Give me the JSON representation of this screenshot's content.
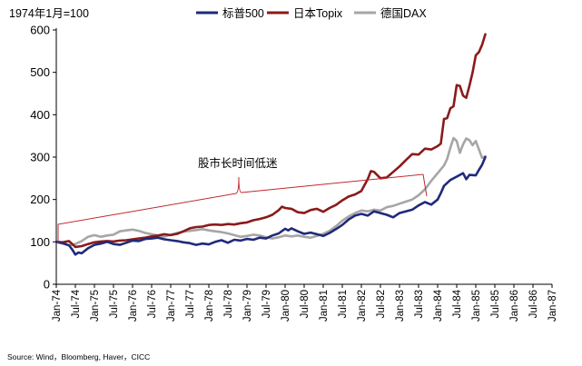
{
  "chart_data": {
    "type": "line",
    "unit_label": "1974年1月=100",
    "ylim": [
      0,
      600
    ],
    "yticks": [
      0,
      100,
      200,
      300,
      400,
      500,
      600
    ],
    "xlabels": [
      "Jan-74",
      "Jul-74",
      "Jan-75",
      "Jul-75",
      "Jan-76",
      "Jul-76",
      "Jan-77",
      "Jul-77",
      "Jan-78",
      "Jul-78",
      "Jan-79",
      "Jul-79",
      "Jan-80",
      "Jul-80",
      "Jan-81",
      "Jul-81",
      "Jan-82",
      "Jul-82",
      "Jan-83",
      "Jul-83",
      "Jan-84",
      "Jul-84",
      "Jan-85",
      "Jul-85",
      "Jan-86",
      "Jul-86",
      "Jan-87"
    ],
    "annotation": "股市长时间低迷",
    "source": "Source: Wind，Bloomberg, Haver，CICC",
    "colors": {
      "sp500": "#1f2a7a",
      "topix": "#8b1a1a",
      "dax": "#a6a6a6",
      "annotation": "#c0282d",
      "axis": "#000000"
    },
    "series": [
      {
        "key": "sp500",
        "name": "标普500",
        "points": [
          [
            0,
            100
          ],
          [
            2,
            97
          ],
          [
            4,
            92
          ],
          [
            5,
            82
          ],
          [
            6,
            70
          ],
          [
            7,
            75
          ],
          [
            8,
            73
          ],
          [
            10,
            85
          ],
          [
            12,
            93
          ],
          [
            14,
            96
          ],
          [
            16,
            100
          ],
          [
            18,
            95
          ],
          [
            20,
            93
          ],
          [
            22,
            98
          ],
          [
            24,
            103
          ],
          [
            26,
            102
          ],
          [
            28,
            107
          ],
          [
            30,
            108
          ],
          [
            32,
            110
          ],
          [
            34,
            106
          ],
          [
            36,
            104
          ],
          [
            38,
            102
          ],
          [
            40,
            99
          ],
          [
            42,
            97
          ],
          [
            44,
            93
          ],
          [
            46,
            96
          ],
          [
            48,
            94
          ],
          [
            50,
            100
          ],
          [
            52,
            104
          ],
          [
            54,
            98
          ],
          [
            56,
            105
          ],
          [
            58,
            103
          ],
          [
            60,
            107
          ],
          [
            62,
            105
          ],
          [
            64,
            110
          ],
          [
            66,
            108
          ],
          [
            68,
            115
          ],
          [
            70,
            120
          ],
          [
            72,
            131
          ],
          [
            73,
            127
          ],
          [
            74,
            132
          ],
          [
            76,
            125
          ],
          [
            78,
            119
          ],
          [
            80,
            122
          ],
          [
            82,
            118
          ],
          [
            84,
            114
          ],
          [
            86,
            121
          ],
          [
            88,
            130
          ],
          [
            90,
            140
          ],
          [
            92,
            153
          ],
          [
            94,
            162
          ],
          [
            96,
            166
          ],
          [
            98,
            162
          ],
          [
            100,
            172
          ],
          [
            102,
            168
          ],
          [
            104,
            164
          ],
          [
            106,
            158
          ],
          [
            108,
            168
          ],
          [
            110,
            172
          ],
          [
            112,
            176
          ],
          [
            114,
            186
          ],
          [
            116,
            194
          ],
          [
            118,
            188
          ],
          [
            120,
            200
          ],
          [
            121,
            215
          ],
          [
            122,
            232
          ],
          [
            124,
            246
          ],
          [
            126,
            254
          ],
          [
            128,
            262
          ],
          [
            129,
            248
          ],
          [
            130,
            258
          ],
          [
            132,
            257
          ],
          [
            133,
            270
          ],
          [
            134,
            282
          ],
          [
            135,
            300
          ]
        ]
      },
      {
        "key": "topix",
        "name": "日本Topix",
        "points": [
          [
            0,
            100
          ],
          [
            2,
            99
          ],
          [
            4,
            102
          ],
          [
            6,
            88
          ],
          [
            8,
            90
          ],
          [
            10,
            95
          ],
          [
            12,
            99
          ],
          [
            14,
            101
          ],
          [
            16,
            102
          ],
          [
            18,
            101
          ],
          [
            20,
            103
          ],
          [
            22,
            104
          ],
          [
            24,
            106
          ],
          [
            26,
            108
          ],
          [
            28,
            110
          ],
          [
            30,
            113
          ],
          [
            32,
            115
          ],
          [
            34,
            118
          ],
          [
            36,
            116
          ],
          [
            38,
            119
          ],
          [
            40,
            125
          ],
          [
            42,
            132
          ],
          [
            44,
            135
          ],
          [
            46,
            136
          ],
          [
            48,
            140
          ],
          [
            50,
            141
          ],
          [
            52,
            140
          ],
          [
            54,
            142
          ],
          [
            56,
            141
          ],
          [
            58,
            144
          ],
          [
            60,
            146
          ],
          [
            62,
            151
          ],
          [
            64,
            154
          ],
          [
            66,
            158
          ],
          [
            68,
            164
          ],
          [
            70,
            175
          ],
          [
            71,
            183
          ],
          [
            72,
            180
          ],
          [
            74,
            178
          ],
          [
            76,
            170
          ],
          [
            78,
            168
          ],
          [
            80,
            175
          ],
          [
            82,
            178
          ],
          [
            84,
            171
          ],
          [
            86,
            180
          ],
          [
            88,
            187
          ],
          [
            90,
            198
          ],
          [
            92,
            207
          ],
          [
            94,
            212
          ],
          [
            96,
            220
          ],
          [
            98,
            248
          ],
          [
            99,
            267
          ],
          [
            100,
            265
          ],
          [
            102,
            250
          ],
          [
            104,
            252
          ],
          [
            106,
            265
          ],
          [
            108,
            278
          ],
          [
            110,
            293
          ],
          [
            112,
            307
          ],
          [
            114,
            306
          ],
          [
            116,
            320
          ],
          [
            118,
            318
          ],
          [
            120,
            326
          ],
          [
            121,
            332
          ],
          [
            122,
            390
          ],
          [
            123,
            392
          ],
          [
            124,
            415
          ],
          [
            125,
            420
          ],
          [
            126,
            470
          ],
          [
            127,
            468
          ],
          [
            128,
            445
          ],
          [
            129,
            440
          ],
          [
            130,
            468
          ],
          [
            131,
            500
          ],
          [
            132,
            540
          ],
          [
            133,
            548
          ],
          [
            134,
            565
          ],
          [
            135,
            590
          ]
        ]
      },
      {
        "key": "dax",
        "name": "德国DAX",
        "points": [
          [
            0,
            100
          ],
          [
            2,
            96
          ],
          [
            4,
            92
          ],
          [
            6,
            95
          ],
          [
            8,
            102
          ],
          [
            10,
            112
          ],
          [
            12,
            116
          ],
          [
            14,
            112
          ],
          [
            16,
            115
          ],
          [
            18,
            117
          ],
          [
            20,
            125
          ],
          [
            22,
            127
          ],
          [
            24,
            129
          ],
          [
            26,
            126
          ],
          [
            28,
            121
          ],
          [
            30,
            118
          ],
          [
            32,
            115
          ],
          [
            34,
            112
          ],
          [
            36,
            117
          ],
          [
            38,
            121
          ],
          [
            40,
            124
          ],
          [
            42,
            126
          ],
          [
            44,
            128
          ],
          [
            46,
            130
          ],
          [
            48,
            127
          ],
          [
            50,
            125
          ],
          [
            52,
            123
          ],
          [
            54,
            120
          ],
          [
            56,
            116
          ],
          [
            58,
            112
          ],
          [
            60,
            114
          ],
          [
            62,
            117
          ],
          [
            64,
            115
          ],
          [
            66,
            111
          ],
          [
            68,
            108
          ],
          [
            70,
            111
          ],
          [
            72,
            115
          ],
          [
            74,
            113
          ],
          [
            76,
            115
          ],
          [
            78,
            112
          ],
          [
            80,
            110
          ],
          [
            82,
            114
          ],
          [
            84,
            119
          ],
          [
            86,
            126
          ],
          [
            88,
            137
          ],
          [
            90,
            150
          ],
          [
            92,
            160
          ],
          [
            94,
            168
          ],
          [
            96,
            174
          ],
          [
            98,
            172
          ],
          [
            100,
            176
          ],
          [
            102,
            174
          ],
          [
            104,
            182
          ],
          [
            106,
            185
          ],
          [
            108,
            190
          ],
          [
            110,
            195
          ],
          [
            112,
            200
          ],
          [
            114,
            210
          ],
          [
            116,
            224
          ],
          [
            118,
            244
          ],
          [
            120,
            262
          ],
          [
            122,
            280
          ],
          [
            123,
            296
          ],
          [
            124,
            322
          ],
          [
            125,
            345
          ],
          [
            126,
            338
          ],
          [
            127,
            310
          ],
          [
            128,
            330
          ],
          [
            129,
            344
          ],
          [
            130,
            340
          ],
          [
            131,
            328
          ],
          [
            132,
            338
          ],
          [
            133,
            318
          ],
          [
            134,
            298
          ],
          [
            135,
            302
          ]
        ]
      }
    ]
  }
}
